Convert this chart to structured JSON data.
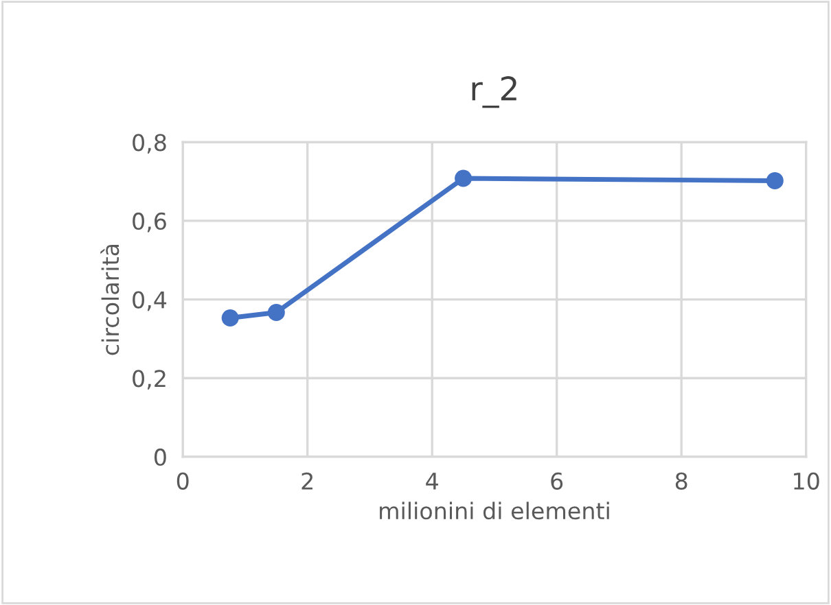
{
  "chart_data": {
    "type": "line",
    "title": "r_2",
    "xlabel": "milionini di elementi",
    "ylabel": "circolarità",
    "x": [
      0.76,
      1.5,
      4.5,
      9.5
    ],
    "series": [
      {
        "color": "#4472c4",
        "values": [
          0.353,
          0.367,
          0.708,
          0.702
        ]
      }
    ],
    "xlim": [
      0,
      10
    ],
    "xticks": [
      0,
      2,
      4,
      6,
      8,
      10
    ],
    "ylim": [
      0,
      0.8
    ],
    "yticks": [
      {
        "value": 0,
        "label": "0"
      },
      {
        "value": 0.2,
        "label": "0,2"
      },
      {
        "value": 0.4,
        "label": "0,4"
      },
      {
        "value": 0.6,
        "label": "0,6"
      },
      {
        "value": 0.8,
        "label": "0,8"
      }
    ],
    "grid": true,
    "marker": "circle",
    "line_style": "solid"
  }
}
